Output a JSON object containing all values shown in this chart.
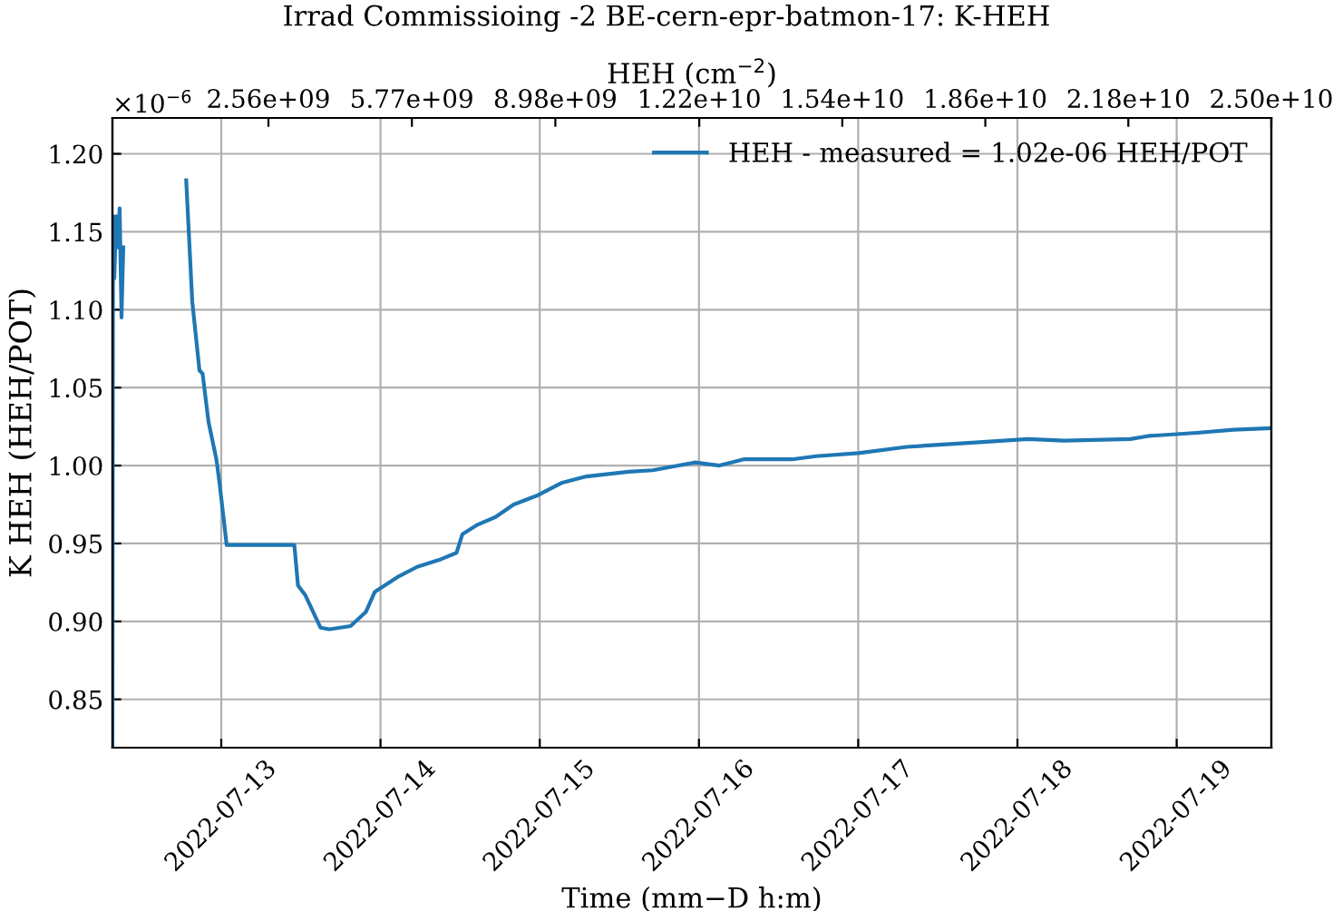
{
  "chart_data": {
    "type": "line",
    "title": "Irrad Commissioing -2 BE-cern-epr-batmon-17: K-HEH",
    "xlabel": "Time (mm−D h:m)",
    "ylabel": "K HEH (HEH/POT)",
    "x2label": "HEH (cm$^{−2}$)",
    "annotations": [
      "×10$^{−6}$"
    ],
    "xlim": [
      "2022-07-12T07:36",
      "2022-07-19T14:16"
    ],
    "xticks": [
      "2022-07-13",
      "2022-07-14",
      "2022-07-15",
      "2022-07-16",
      "2022-07-17",
      "2022-07-18",
      "2022-07-19"
    ],
    "ylim": [
      0.819,
      1.223
    ],
    "yticks": [
      0.85,
      {
        "value": 0.9,
        "label": "0.90"
      },
      0.95,
      {
        "value": 1,
        "label": "1.00"
      },
      1.05,
      {
        "value": 1.1,
        "label": "1.10"
      },
      1.15,
      {
        "value": 1.2,
        "label": "1.20"
      }
    ],
    "x2lim": [
      -930000000,
      25000000000
    ],
    "x2ticks": [
      {
        "value": 2560000000,
        "label": "2.56e+09"
      },
      {
        "value": 5770000000,
        "label": "5.77e+09"
      },
      {
        "value": 8980000000,
        "label": "8.98e+09"
      },
      {
        "value": 12200000000,
        "label": "1.22e+10"
      },
      {
        "value": 15400000000,
        "label": "1.54e+10"
      },
      {
        "value": 18600000000,
        "label": "1.86e+10"
      },
      {
        "value": 21800000000,
        "label": "2.18e+10"
      },
      {
        "value": 25000000000,
        "label": "2.50e+10"
      }
    ],
    "grid": true,
    "legend": "top right",
    "series": [
      {
        "name": "HEH - measured = 1.02e-06 HEH/POT",
        "color": "#1f77b4",
        "x": [
          "2022-07-12T07:36",
          "2022-07-12T07:41",
          "2022-07-12T07:53",
          "2022-07-12T08:09",
          "2022-07-12T08:25",
          "2022-07-12T08:41",
          "2022-07-12T08:58",
          "2022-07-12T09:14",
          "2022-07-12T09:46",
          "2022-07-12T18:32",
          "2022-07-12T18:43",
          "2022-07-12T19:38",
          "2022-07-12T20:43",
          "2022-07-12T21:11",
          "2022-07-12T22:05",
          "2022-07-12T23:16",
          "2022-07-12T23:44",
          "2022-07-13T00:49",
          "2022-07-13T11:01",
          "2022-07-13T11:34",
          "2022-07-13T12:39",
          "2022-07-13T14:57",
          "2022-07-13T16:19",
          "2022-07-13T19:29",
          "2022-07-13T21:47",
          "2022-07-13T23:09",
          "2022-07-14T02:47",
          "2022-07-14T05:31",
          "2022-07-14T09:10",
          "2022-07-14T11:27",
          "2022-07-14T12:21",
          "2022-07-14T14:37",
          "2022-07-14T17:21",
          "2022-07-14T20:05",
          "2022-07-14T23:45",
          "2022-07-15T03:23",
          "2022-07-15T07:02",
          "2022-07-15T13:25",
          "2022-07-15T17:03",
          "2022-07-15T23:26",
          "2022-07-16T03:05",
          "2022-07-16T06:43",
          "2022-07-16T14:01",
          "2022-07-16T17:40",
          "2022-07-17T00:02",
          "2022-07-17T07:19",
          "2022-07-17T18:16",
          "2022-07-18T01:34",
          "2022-07-18T07:02",
          "2022-07-18T17:02",
          "2022-07-18T19:46",
          "2022-07-19T03:04",
          "2022-07-19T08:31",
          "2022-07-19T14:16"
        ],
        "values": [
          0.82,
          1.16,
          1.12,
          1.16,
          1.14,
          1.165,
          1.095,
          1.14,
          null,
          null,
          1.183,
          1.105,
          1.061,
          1.059,
          1.028,
          1.004,
          0.989,
          0.949,
          0.949,
          0.923,
          0.917,
          0.896,
          0.895,
          0.897,
          0.906,
          0.919,
          0.929,
          0.935,
          0.94,
          0.944,
          0.956,
          0.962,
          0.967,
          0.975,
          0.981,
          0.989,
          0.993,
          0.996,
          0.997,
          1.002,
          1.0,
          1.004,
          1.004,
          1.006,
          1.008,
          1.012,
          1.015,
          1.017,
          1.016,
          1.017,
          1.019,
          1.021,
          1.023,
          1.024
        ]
      }
    ]
  }
}
